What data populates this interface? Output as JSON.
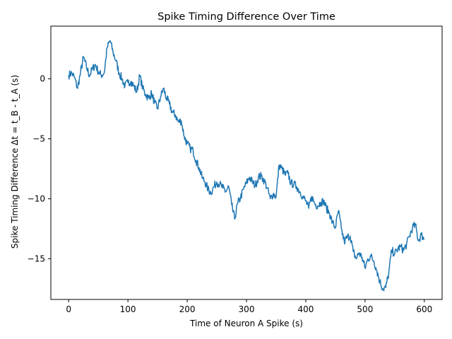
{
  "chart_data": {
    "type": "line",
    "title": "Spike Timing Difference Over Time",
    "xlabel": "Time of Neuron A Spike (s)",
    "ylabel": "Spike Timing Difference Δt = t_B - t_A (s)",
    "xlim": [
      -30,
      630
    ],
    "ylim": [
      -18.4,
      4.4
    ],
    "xticks": [
      0,
      100,
      200,
      300,
      400,
      500,
      600
    ],
    "yticks": [
      0,
      -5,
      -10,
      -15
    ],
    "grid": false,
    "series": [
      {
        "color": "#1f77b4",
        "x": [
          0,
          5,
          10,
          15,
          20,
          25,
          30,
          35,
          40,
          45,
          50,
          55,
          60,
          65,
          70,
          75,
          80,
          85,
          90,
          95,
          100,
          105,
          110,
          115,
          120,
          125,
          130,
          135,
          140,
          145,
          150,
          155,
          160,
          165,
          170,
          175,
          180,
          185,
          190,
          195,
          200,
          205,
          210,
          215,
          220,
          225,
          230,
          235,
          240,
          245,
          250,
          255,
          260,
          265,
          270,
          275,
          280,
          285,
          290,
          295,
          300,
          305,
          310,
          315,
          320,
          325,
          330,
          335,
          340,
          345,
          350,
          355,
          360,
          365,
          370,
          375,
          380,
          385,
          390,
          395,
          400,
          405,
          410,
          415,
          420,
          425,
          430,
          435,
          440,
          445,
          450,
          455,
          460,
          465,
          470,
          475,
          480,
          485,
          490,
          495,
          500,
          505,
          510,
          515,
          520,
          525,
          530,
          535,
          540,
          545,
          550,
          555,
          560,
          565,
          570,
          575,
          580,
          585,
          590,
          595,
          600
        ],
        "y": [
          0.3,
          0.5,
          0.1,
          -0.8,
          0.5,
          1.8,
          1.0,
          0.3,
          0.8,
          1.2,
          0.6,
          0.3,
          0.5,
          2.6,
          3.2,
          2.2,
          1.5,
          0.5,
          0.0,
          -0.6,
          -0.3,
          -0.2,
          -0.6,
          -1.1,
          0.3,
          -0.8,
          -1.3,
          -1.6,
          -1.2,
          -2.0,
          -2.5,
          -1.5,
          -0.8,
          -1.6,
          -2.1,
          -2.8,
          -3.0,
          -3.6,
          -3.5,
          -4.8,
          -5.4,
          -5.8,
          -6.0,
          -6.8,
          -7.4,
          -8.2,
          -8.6,
          -9.2,
          -9.5,
          -9.0,
          -8.6,
          -8.8,
          -9.1,
          -9.4,
          -9.0,
          -10.5,
          -11.7,
          -10.4,
          -9.9,
          -9.2,
          -8.7,
          -8.2,
          -8.6,
          -8.9,
          -8.2,
          -8.1,
          -8.5,
          -9.1,
          -10.0,
          -9.6,
          -9.8,
          -7.2,
          -7.5,
          -8.0,
          -7.9,
          -8.7,
          -8.8,
          -9.0,
          -9.4,
          -9.8,
          -10.2,
          -10.8,
          -9.8,
          -10.4,
          -10.6,
          -10.3,
          -10.2,
          -10.8,
          -11.2,
          -12.0,
          -12.4,
          -11.0,
          -12.5,
          -13.6,
          -13.2,
          -13.1,
          -14.4,
          -15.0,
          -14.5,
          -14.9,
          -15.8,
          -15.0,
          -14.8,
          -15.2,
          -16.0,
          -16.9,
          -17.5,
          -17.4,
          -16.2,
          -14.3,
          -14.6,
          -14.2,
          -14.0,
          -14.3,
          -13.8,
          -13.1,
          -12.4,
          -12.2,
          -13.5,
          -13.0,
          -13.4
        ]
      }
    ]
  }
}
